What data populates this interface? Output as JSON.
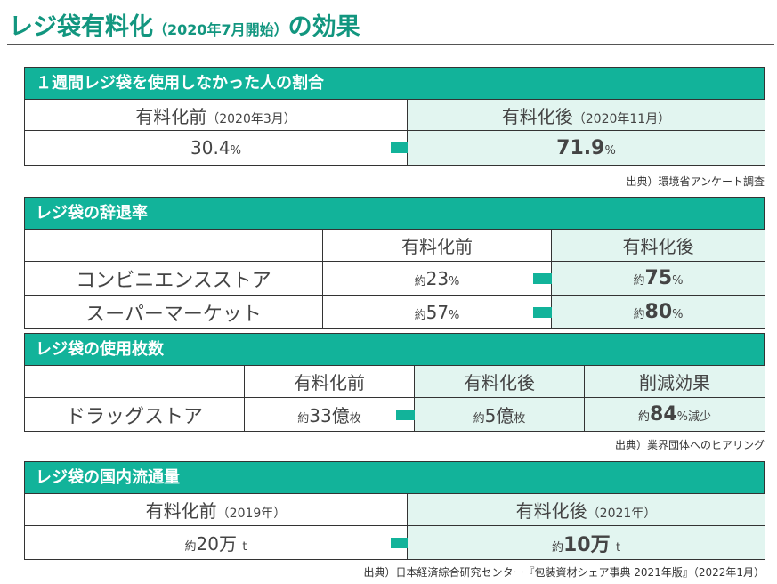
{
  "title": {
    "main": "レジ袋有料化",
    "sub": "（2020年7月開始）",
    "tail": "の効果"
  },
  "sections": {
    "usage_rate": {
      "header": "１週間レジ袋を使用しなかった人の割合",
      "before_label": "有料化前",
      "before_period": "（2020年3月）",
      "after_label": "有料化後",
      "after_period": "（2020年11月）",
      "before_value": "30.4",
      "after_value": "71.9",
      "unit": "%",
      "note": "出典）環境省アンケート調査"
    },
    "decline_rate": {
      "header": "レジ袋の辞退率",
      "before_label": "有料化前",
      "after_label": "有料化後",
      "rows": [
        {
          "label": "コンビニエンスストア",
          "prefix": "約",
          "before": "23",
          "after": "75",
          "unit": "%"
        },
        {
          "label": "スーパーマーケット",
          "prefix": "約",
          "before": "57",
          "after": "80",
          "unit": "%"
        }
      ]
    },
    "usage_count": {
      "header": "レジ袋の使用枚数",
      "before_label": "有料化前",
      "after_label": "有料化後",
      "effect_label": "削減効果",
      "row_label": "ドラッグストア",
      "prefix": "約",
      "before": "33億",
      "after": "5億",
      "count_unit": "枚",
      "effect": "84",
      "effect_unit": "%減少",
      "note": "出典）業界団体へのヒアリング"
    },
    "domestic_flow": {
      "header": "レジ袋の国内流通量",
      "before_label": "有料化前",
      "before_period": "（2019年）",
      "after_label": "有料化後",
      "after_period": "（2021年）",
      "prefix": "約",
      "before": "20万",
      "after": "10万",
      "unit": "t",
      "note": "出典）日本経済綜合研究センター『包装資材シェア事典 2021年版』（2022年1月）"
    }
  },
  "colors": {
    "accent": "#12b39a",
    "title": "#12967f",
    "highlight": "#e2f5f0"
  },
  "icons": {
    "arrow": "arrow-right-icon"
  }
}
